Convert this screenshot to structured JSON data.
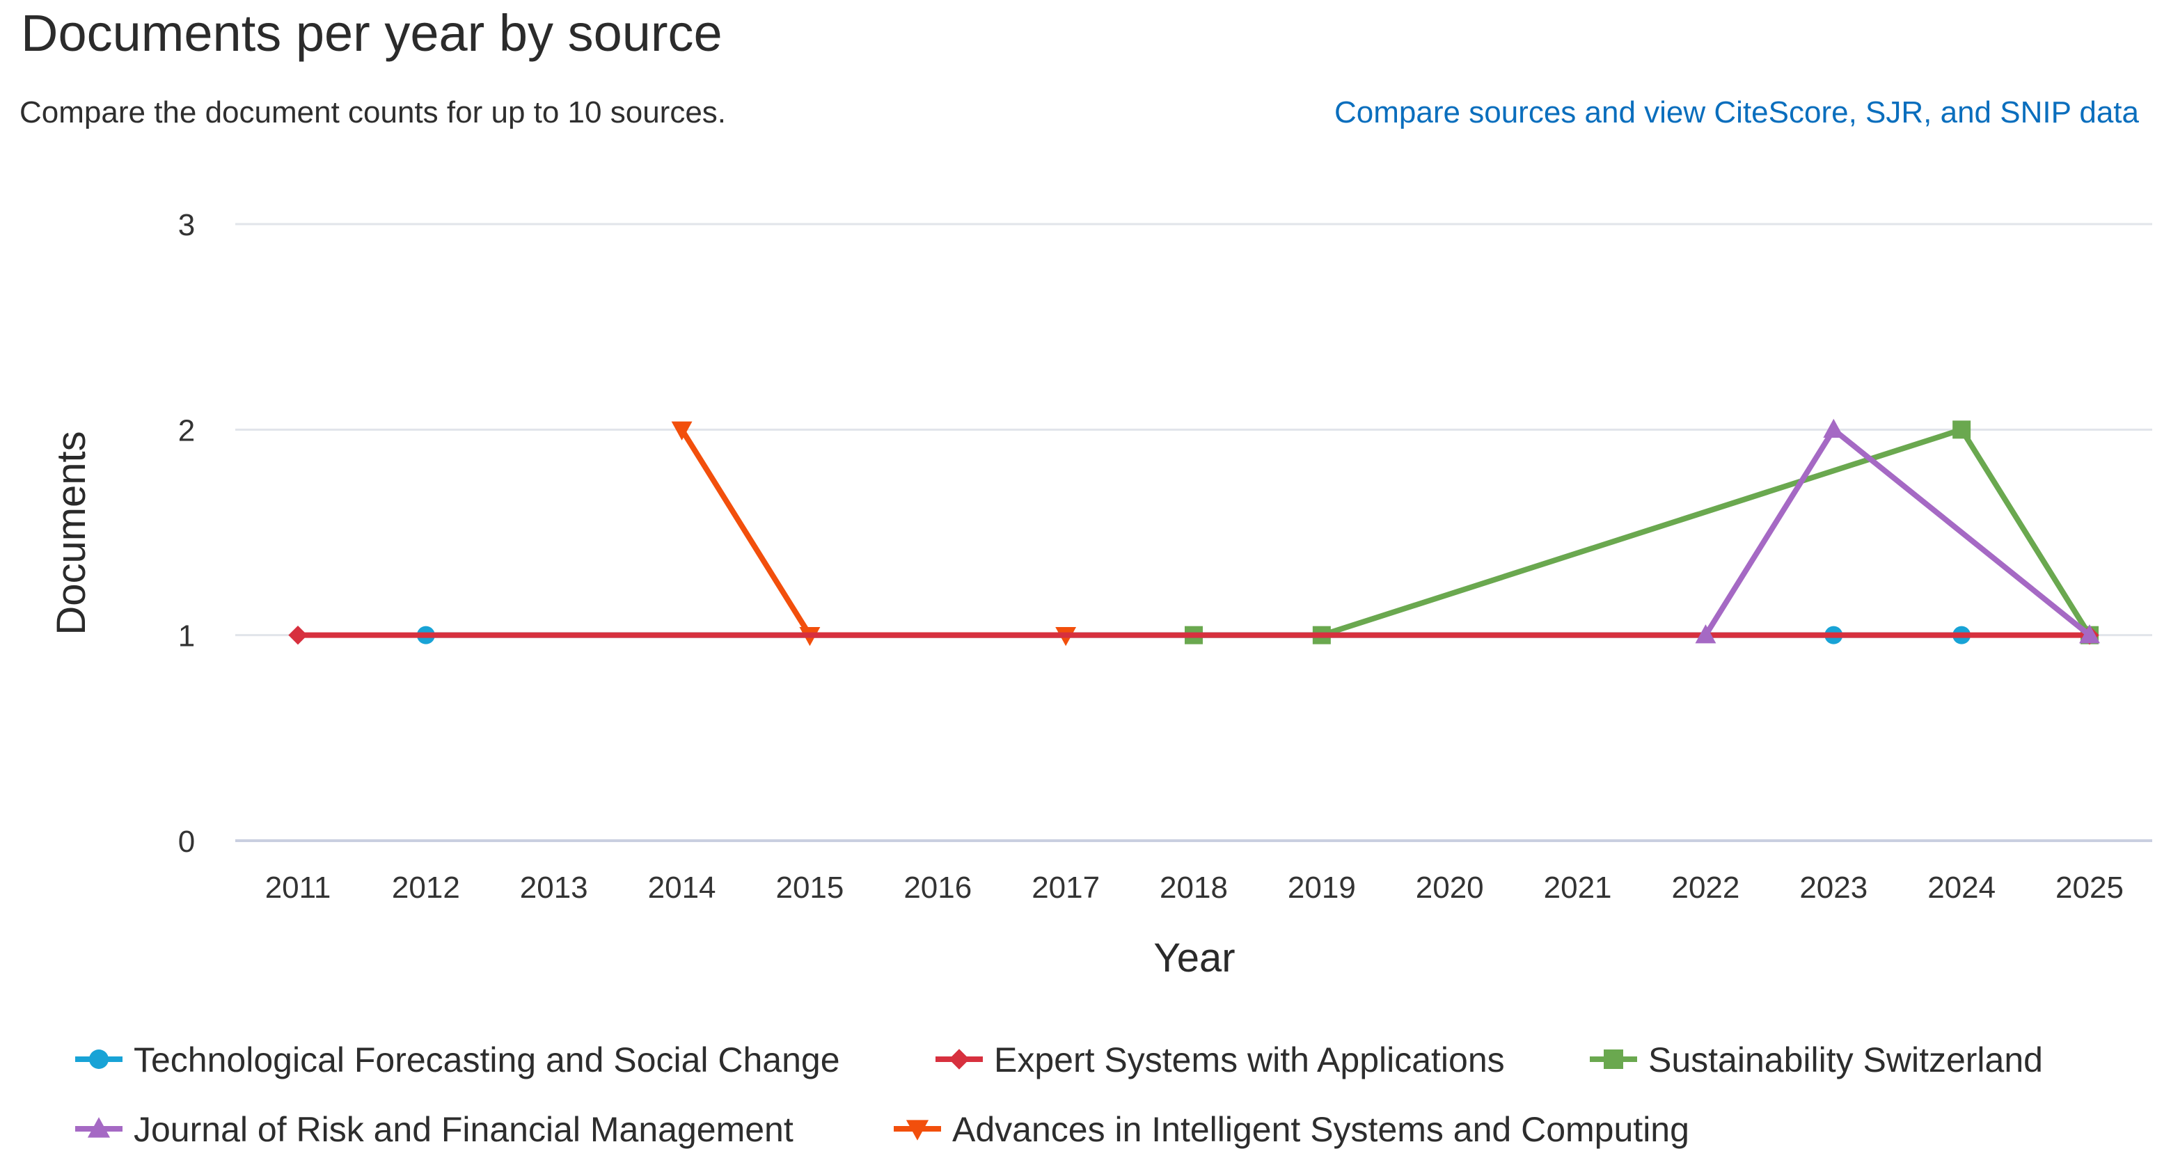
{
  "header": {
    "title": "Documents per year by source",
    "subtitle": "Compare the document counts for up to 10 sources.",
    "compare_link": "Compare sources and view CiteScore, SJR, and SNIP data"
  },
  "chart_data": {
    "type": "line",
    "xlabel": "Year",
    "ylabel": "Documents",
    "x": [
      "2011",
      "2012",
      "2013",
      "2014",
      "2015",
      "2016",
      "2017",
      "2018",
      "2019",
      "2020",
      "2021",
      "2022",
      "2023",
      "2024",
      "2025"
    ],
    "ylim": [
      0,
      3
    ],
    "yticks": [
      0,
      1,
      2,
      3
    ],
    "grid": true,
    "legend_placement": "bottom",
    "series": [
      {
        "name": "Technological Forecasting and Social Change",
        "color": "#18a3d6",
        "marker": "circle",
        "points": [
          {
            "x": "2012",
            "y": 1
          },
          {
            "x": "2023",
            "y": 1
          },
          {
            "x": "2024",
            "y": 1
          }
        ]
      },
      {
        "name": "Expert Systems with Applications",
        "color": "#d7303e",
        "marker": "diamond",
        "points": [
          {
            "x": "2011",
            "y": 1
          },
          {
            "x": "2025",
            "y": 1
          }
        ]
      },
      {
        "name": "Sustainability Switzerland",
        "color": "#6aa84f",
        "marker": "square",
        "points": [
          {
            "x": "2018",
            "y": 1
          },
          {
            "x": "2019",
            "y": 1
          },
          {
            "x": "2024",
            "y": 2
          },
          {
            "x": "2025",
            "y": 1
          }
        ]
      },
      {
        "name": "Journal of Risk and Financial Management",
        "color": "#a569c4",
        "marker": "triangle-up",
        "points": [
          {
            "x": "2022",
            "y": 1
          },
          {
            "x": "2023",
            "y": 2
          },
          {
            "x": "2025",
            "y": 1
          }
        ]
      },
      {
        "name": "Advances in Intelligent Systems and Computing",
        "color": "#f24f0c",
        "marker": "triangle-down",
        "points": [
          {
            "x": "2014",
            "y": 2
          },
          {
            "x": "2015",
            "y": 1
          },
          {
            "x": "2017",
            "y": 1
          }
        ]
      }
    ]
  }
}
